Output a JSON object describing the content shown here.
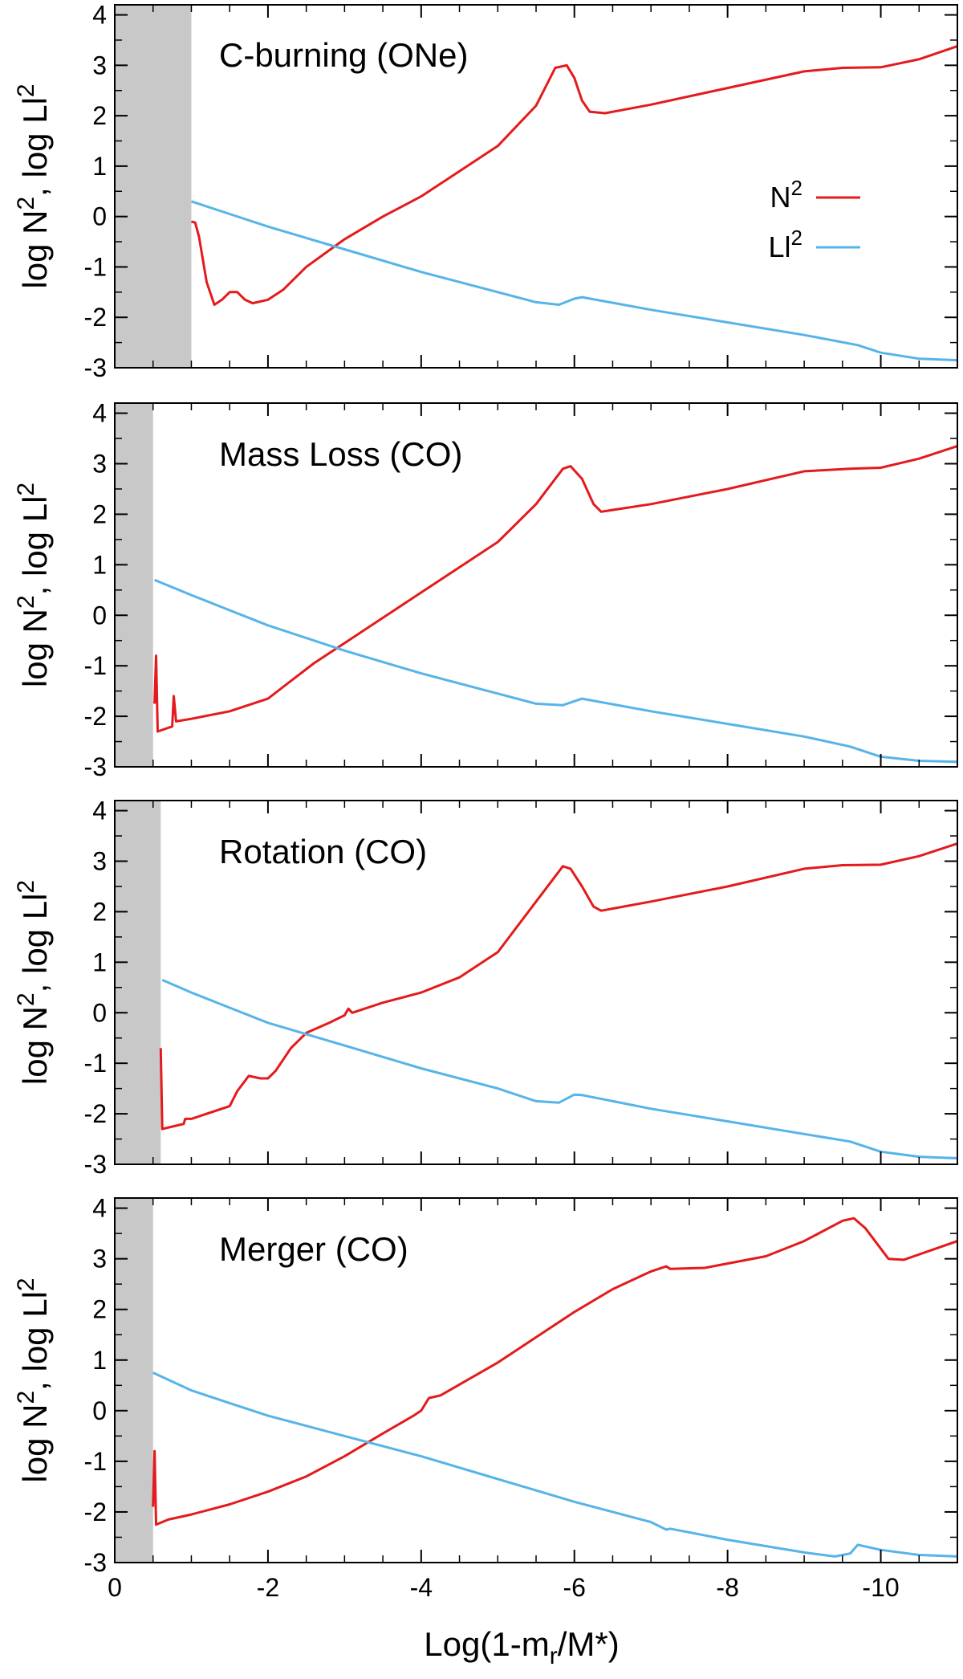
{
  "chart_data": {
    "type": "line",
    "xlabel": "Log(1-mr/M*)",
    "xlabel_parts": {
      "main": "Log(1-m",
      "sub": "r",
      "tail": "/M*)"
    },
    "ylabel": "log N², log Ll²",
    "ylabel_parts": {
      "a": "log N",
      "sup1": "2",
      "b": ", log Ll",
      "sup2": "2"
    },
    "xlim": [
      0,
      -11
    ],
    "ylim": [
      -3,
      4.2
    ],
    "x_ticks": [
      0,
      -2,
      -4,
      -6,
      -8,
      -10
    ],
    "x_tick_labels": [
      "0",
      "-2",
      "-4",
      "-6",
      "-8",
      "-10"
    ],
    "y_ticks": [
      -3,
      -2,
      -1,
      0,
      1,
      2,
      3,
      4
    ],
    "y_tick_labels": [
      "-3",
      "-2",
      "-1",
      "0",
      "1",
      "2",
      "3",
      "4"
    ],
    "legend": {
      "position": "upper-right of top panel",
      "entries": [
        {
          "name": "N",
          "sup": "2",
          "color": "#e41a1c"
        },
        {
          "name": "Ll",
          "sup": "2",
          "color": "#56b4e9"
        }
      ]
    },
    "colors": {
      "N2": "#e41a1c",
      "L2": "#56b4e9",
      "shade": "#c8c8c8"
    },
    "panels": [
      {
        "title": "C-burning (ONe)",
        "shaded_x": [
          0,
          -1.0
        ],
        "series": [
          {
            "name": "N2",
            "points": [
              [
                -1.0,
                -0.1
              ],
              [
                -1.05,
                -0.12
              ],
              [
                -1.1,
                -0.4
              ],
              [
                -1.2,
                -1.3
              ],
              [
                -1.3,
                -1.75
              ],
              [
                -1.4,
                -1.65
              ],
              [
                -1.5,
                -1.5
              ],
              [
                -1.6,
                -1.5
              ],
              [
                -1.7,
                -1.65
              ],
              [
                -1.8,
                -1.72
              ],
              [
                -2.0,
                -1.65
              ],
              [
                -2.2,
                -1.45
              ],
              [
                -2.5,
                -1.0
              ],
              [
                -3.0,
                -0.45
              ],
              [
                -3.5,
                0.0
              ],
              [
                -4.0,
                0.4
              ],
              [
                -4.5,
                0.9
              ],
              [
                -5.0,
                1.4
              ],
              [
                -5.5,
                2.2
              ],
              [
                -5.75,
                2.95
              ],
              [
                -5.9,
                3.0
              ],
              [
                -6.0,
                2.75
              ],
              [
                -6.1,
                2.3
              ],
              [
                -6.2,
                2.08
              ],
              [
                -6.4,
                2.05
              ],
              [
                -7.0,
                2.22
              ],
              [
                -8.0,
                2.55
              ],
              [
                -9.0,
                2.88
              ],
              [
                -9.5,
                2.95
              ],
              [
                -10.0,
                2.96
              ],
              [
                -10.5,
                3.12
              ],
              [
                -11.0,
                3.38
              ]
            ]
          },
          {
            "name": "L2",
            "points": [
              [
                -1.0,
                0.3
              ],
              [
                -1.5,
                0.05
              ],
              [
                -2.0,
                -0.2
              ],
              [
                -3.0,
                -0.65
              ],
              [
                -4.0,
                -1.1
              ],
              [
                -5.0,
                -1.5
              ],
              [
                -5.5,
                -1.7
              ],
              [
                -5.8,
                -1.75
              ],
              [
                -6.0,
                -1.63
              ],
              [
                -6.1,
                -1.6
              ],
              [
                -7.0,
                -1.85
              ],
              [
                -8.0,
                -2.1
              ],
              [
                -9.0,
                -2.35
              ],
              [
                -9.7,
                -2.55
              ],
              [
                -10.0,
                -2.7
              ],
              [
                -10.5,
                -2.82
              ],
              [
                -11.0,
                -2.85
              ]
            ]
          }
        ]
      },
      {
        "title": "Mass Loss (CO)",
        "shaded_x": [
          0,
          -0.5
        ],
        "series": [
          {
            "name": "N2",
            "points": [
              [
                -0.52,
                -1.75
              ],
              [
                -0.54,
                -0.8
              ],
              [
                -0.56,
                -2.3
              ],
              [
                -0.75,
                -2.2
              ],
              [
                -0.77,
                -1.6
              ],
              [
                -0.8,
                -2.1
              ],
              [
                -1.0,
                -2.05
              ],
              [
                -1.5,
                -1.9
              ],
              [
                -2.0,
                -1.65
              ],
              [
                -2.3,
                -1.3
              ],
              [
                -2.6,
                -0.95
              ],
              [
                -3.0,
                -0.55
              ],
              [
                -3.5,
                -0.05
              ],
              [
                -4.0,
                0.45
              ],
              [
                -4.5,
                0.95
              ],
              [
                -5.0,
                1.45
              ],
              [
                -5.5,
                2.2
              ],
              [
                -5.85,
                2.9
              ],
              [
                -5.95,
                2.95
              ],
              [
                -6.1,
                2.7
              ],
              [
                -6.25,
                2.2
              ],
              [
                -6.35,
                2.05
              ],
              [
                -7.0,
                2.2
              ],
              [
                -8.0,
                2.5
              ],
              [
                -9.0,
                2.85
              ],
              [
                -9.6,
                2.9
              ],
              [
                -10.0,
                2.92
              ],
              [
                -10.5,
                3.1
              ],
              [
                -11.0,
                3.35
              ]
            ]
          },
          {
            "name": "L2",
            "points": [
              [
                -0.52,
                0.7
              ],
              [
                -1.0,
                0.4
              ],
              [
                -1.5,
                0.1
              ],
              [
                -2.0,
                -0.2
              ],
              [
                -3.0,
                -0.7
              ],
              [
                -4.0,
                -1.15
              ],
              [
                -5.0,
                -1.55
              ],
              [
                -5.5,
                -1.75
              ],
              [
                -5.85,
                -1.78
              ],
              [
                -6.1,
                -1.65
              ],
              [
                -7.0,
                -1.9
              ],
              [
                -8.0,
                -2.15
              ],
              [
                -9.0,
                -2.4
              ],
              [
                -9.6,
                -2.6
              ],
              [
                -10.0,
                -2.8
              ],
              [
                -10.5,
                -2.88
              ],
              [
                -11.0,
                -2.9
              ]
            ]
          }
        ]
      },
      {
        "title": "Rotation (CO)",
        "shaded_x": [
          0,
          -0.6
        ],
        "series": [
          {
            "name": "N2",
            "points": [
              [
                -0.6,
                -0.7
              ],
              [
                -0.62,
                -2.3
              ],
              [
                -0.9,
                -2.2
              ],
              [
                -0.92,
                -2.1
              ],
              [
                -1.0,
                -2.1
              ],
              [
                -1.5,
                -1.85
              ],
              [
                -1.6,
                -1.55
              ],
              [
                -1.75,
                -1.25
              ],
              [
                -1.9,
                -1.3
              ],
              [
                -2.0,
                -1.3
              ],
              [
                -2.1,
                -1.15
              ],
              [
                -2.3,
                -0.7
              ],
              [
                -2.5,
                -0.4
              ],
              [
                -2.8,
                -0.2
              ],
              [
                -3.0,
                -0.05
              ],
              [
                -3.05,
                0.08
              ],
              [
                -3.1,
                0.0
              ],
              [
                -3.5,
                0.2
              ],
              [
                -4.0,
                0.4
              ],
              [
                -4.5,
                0.7
              ],
              [
                -5.0,
                1.2
              ],
              [
                -5.5,
                2.2
              ],
              [
                -5.85,
                2.9
              ],
              [
                -5.95,
                2.85
              ],
              [
                -6.1,
                2.5
              ],
              [
                -6.25,
                2.1
              ],
              [
                -6.35,
                2.02
              ],
              [
                -7.0,
                2.2
              ],
              [
                -8.0,
                2.5
              ],
              [
                -9.0,
                2.85
              ],
              [
                -9.5,
                2.92
              ],
              [
                -10.0,
                2.93
              ],
              [
                -10.5,
                3.1
              ],
              [
                -11.0,
                3.35
              ]
            ]
          },
          {
            "name": "L2",
            "points": [
              [
                -0.62,
                0.65
              ],
              [
                -1.0,
                0.4
              ],
              [
                -1.5,
                0.1
              ],
              [
                -2.0,
                -0.2
              ],
              [
                -3.0,
                -0.65
              ],
              [
                -4.0,
                -1.1
              ],
              [
                -5.0,
                -1.5
              ],
              [
                -5.5,
                -1.75
              ],
              [
                -5.8,
                -1.78
              ],
              [
                -6.0,
                -1.62
              ],
              [
                -6.1,
                -1.63
              ],
              [
                -7.0,
                -1.9
              ],
              [
                -8.0,
                -2.15
              ],
              [
                -9.0,
                -2.4
              ],
              [
                -9.6,
                -2.55
              ],
              [
                -10.0,
                -2.75
              ],
              [
                -10.5,
                -2.85
              ],
              [
                -11.0,
                -2.88
              ]
            ]
          }
        ]
      },
      {
        "title": "Merger (CO)",
        "shaded_x": [
          0,
          -0.5
        ],
        "series": [
          {
            "name": "N2",
            "points": [
              [
                -0.5,
                -1.9
              ],
              [
                -0.52,
                -0.8
              ],
              [
                -0.54,
                -2.25
              ],
              [
                -0.7,
                -2.15
              ],
              [
                -1.0,
                -2.05
              ],
              [
                -1.5,
                -1.85
              ],
              [
                -2.0,
                -1.6
              ],
              [
                -2.5,
                -1.3
              ],
              [
                -3.0,
                -0.9
              ],
              [
                -3.5,
                -0.45
              ],
              [
                -3.9,
                -0.1
              ],
              [
                -4.0,
                0.0
              ],
              [
                -4.1,
                0.25
              ],
              [
                -4.25,
                0.3
              ],
              [
                -5.0,
                0.95
              ],
              [
                -5.5,
                1.45
              ],
              [
                -6.0,
                1.95
              ],
              [
                -6.5,
                2.4
              ],
              [
                -7.0,
                2.75
              ],
              [
                -7.2,
                2.85
              ],
              [
                -7.25,
                2.8
              ],
              [
                -7.7,
                2.82
              ],
              [
                -8.5,
                3.05
              ],
              [
                -9.0,
                3.35
              ],
              [
                -9.5,
                3.75
              ],
              [
                -9.65,
                3.8
              ],
              [
                -9.8,
                3.6
              ],
              [
                -10.1,
                3.0
              ],
              [
                -10.3,
                2.98
              ],
              [
                -11.0,
                3.35
              ]
            ]
          },
          {
            "name": "L2",
            "points": [
              [
                -0.5,
                0.75
              ],
              [
                -1.0,
                0.4
              ],
              [
                -1.5,
                0.15
              ],
              [
                -2.0,
                -0.1
              ],
              [
                -3.0,
                -0.5
              ],
              [
                -4.0,
                -0.9
              ],
              [
                -5.0,
                -1.35
              ],
              [
                -6.0,
                -1.8
              ],
              [
                -7.0,
                -2.2
              ],
              [
                -7.2,
                -2.35
              ],
              [
                -7.25,
                -2.33
              ],
              [
                -8.0,
                -2.55
              ],
              [
                -9.0,
                -2.8
              ],
              [
                -9.4,
                -2.88
              ],
              [
                -9.6,
                -2.82
              ],
              [
                -9.7,
                -2.65
              ],
              [
                -10.0,
                -2.75
              ],
              [
                -10.5,
                -2.85
              ],
              [
                -11.0,
                -2.88
              ]
            ]
          }
        ]
      }
    ]
  }
}
